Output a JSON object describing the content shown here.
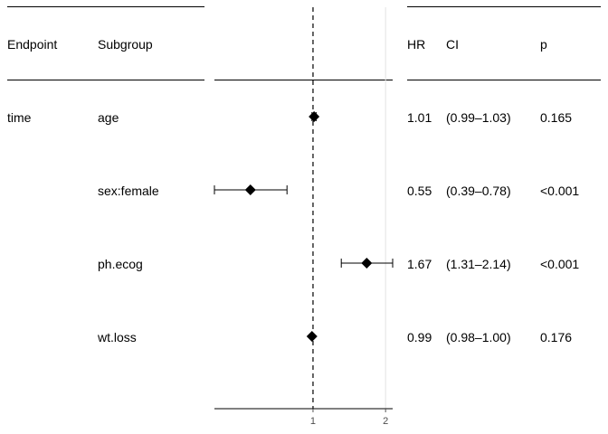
{
  "table": {
    "headers": {
      "endpoint": "Endpoint",
      "subgroup": "Subgroup",
      "hr": "HR",
      "ci": "CI",
      "p": "p"
    },
    "rows": [
      {
        "endpoint": "time",
        "subgroup": "age",
        "hr": "1.01",
        "ci": "(0.99–1.03)",
        "p": "0.165"
      },
      {
        "endpoint": "",
        "subgroup": "sex:female",
        "hr": "0.55",
        "ci": "(0.39–0.78)",
        "p": "<0.001"
      },
      {
        "endpoint": "",
        "subgroup": "ph.ecog",
        "hr": "1.67",
        "ci": "(1.31–2.14)",
        "p": "<0.001"
      },
      {
        "endpoint": "",
        "subgroup": "wt.loss",
        "hr": "0.99",
        "ci": "(0.98–1.00)",
        "p": "0.176"
      }
    ]
  },
  "chart_data": {
    "type": "scatter",
    "title": "",
    "xlabel": "",
    "ylabel": "",
    "x_scale": "log",
    "xlim": [
      0.39,
      2.14
    ],
    "xticks": [
      1,
      2
    ],
    "xtick_labels": [
      "1",
      "2"
    ],
    "reference_line": 1,
    "grid": true,
    "categories": [
      "age",
      "sex:female",
      "ph.ecog",
      "wt.loss"
    ],
    "series": [
      {
        "estimate": [
          1.01,
          0.55,
          1.67,
          0.99
        ],
        "lower": [
          0.99,
          0.39,
          1.31,
          0.98
        ],
        "upper": [
          1.03,
          0.78,
          2.14,
          1.0
        ]
      }
    ]
  }
}
